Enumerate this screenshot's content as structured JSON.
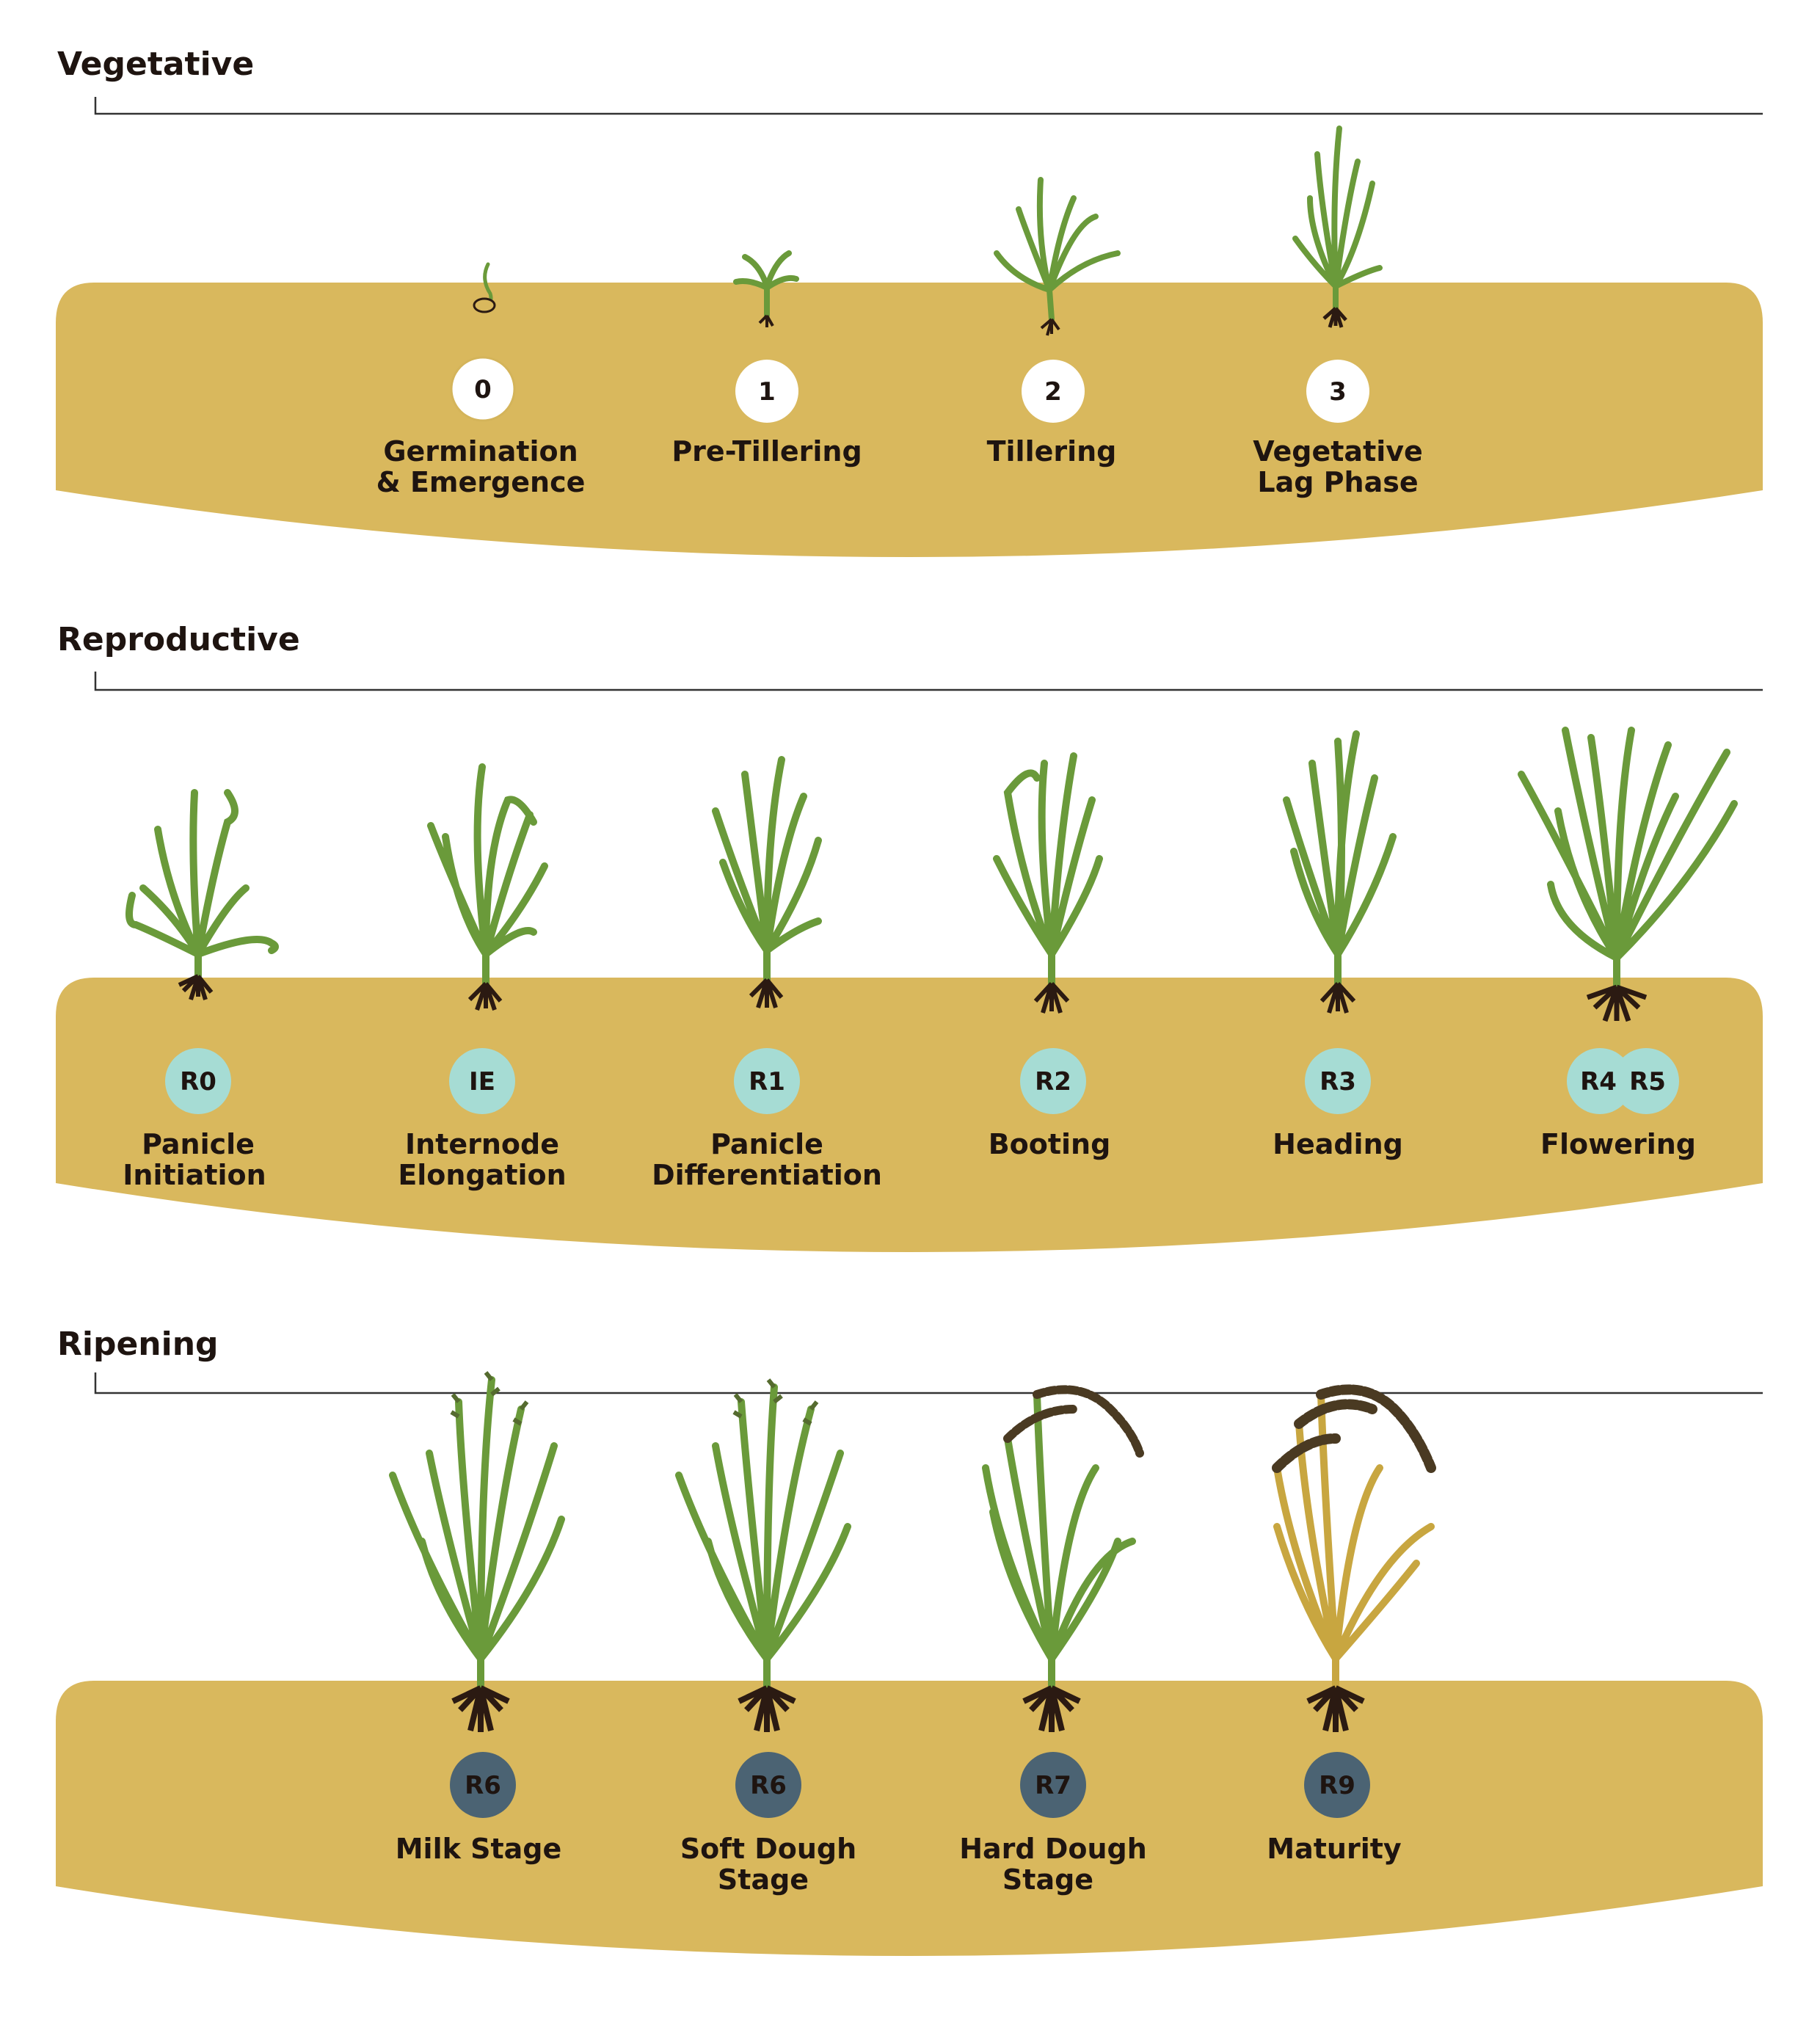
{
  "colors": {
    "soil": "#d9b85d",
    "leaf": "#6a9a3a",
    "leaf_dark": "#2e3b1e",
    "root": "#2b1a12",
    "text": "#1e1410",
    "badge_veg": "#ffffff",
    "badge_rep": "#a6dcd4",
    "badge_rip": "#4b6373",
    "badge_rip_text": "#ffffff",
    "mature_stalk": "#c8a640",
    "grain": "#4a3a22"
  },
  "sections": [
    {
      "title": "Vegetative",
      "badge_style": "veg",
      "stages": [
        {
          "code": "0",
          "lines": [
            "Germination",
            "& Emergence"
          ],
          "plant": "seed"
        },
        {
          "code": "1",
          "lines": [
            "Pre-Tillering"
          ],
          "plant": "sprout"
        },
        {
          "code": "2",
          "lines": [
            "Tillering"
          ],
          "plant": "tiller"
        },
        {
          "code": "3",
          "lines": [
            "Vegetative",
            "Lag Phase"
          ],
          "plant": "lag"
        }
      ]
    },
    {
      "title": "Reproductive",
      "badge_style": "rep",
      "stages": [
        {
          "code": "R0",
          "lines": [
            "Panicle",
            "Initiation"
          ],
          "plant": "r0"
        },
        {
          "code": "IE",
          "lines": [
            "Internode",
            "Elongation"
          ],
          "plant": "ie"
        },
        {
          "code": "R1",
          "lines": [
            "Panicle",
            "Differentiation"
          ],
          "plant": "r1"
        },
        {
          "code": "R2",
          "lines": [
            "Booting"
          ],
          "plant": "r2"
        },
        {
          "code": "R3",
          "lines": [
            "Heading"
          ],
          "plant": "r3"
        },
        {
          "code": "R4",
          "code2": "R5",
          "lines": [
            "Flowering"
          ],
          "plant": "flower"
        }
      ]
    },
    {
      "title": "Ripening",
      "badge_style": "rip",
      "stages": [
        {
          "code": "R6",
          "lines": [
            "Milk Stage"
          ],
          "plant": "milk"
        },
        {
          "code": "R6",
          "lines": [
            "Soft Dough",
            "Stage"
          ],
          "plant": "soft"
        },
        {
          "code": "R7",
          "lines": [
            "Hard Dough",
            "Stage"
          ],
          "plant": "hard"
        },
        {
          "code": "R9",
          "lines": [
            "Maturity"
          ],
          "plant": "mature"
        }
      ]
    }
  ]
}
